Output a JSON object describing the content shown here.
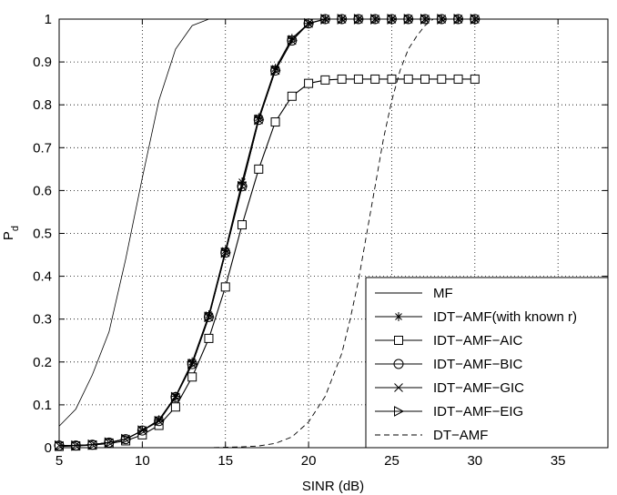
{
  "chart_data": {
    "type": "line",
    "title": "",
    "xlabel": "SINR (dB)",
    "ylabel_main": "P",
    "ylabel_sub": "d",
    "xlim": [
      5,
      38
    ],
    "ylim": [
      0,
      1
    ],
    "xticks": [
      5,
      10,
      15,
      20,
      25,
      30,
      35
    ],
    "yticks": [
      0,
      0.1,
      0.2,
      0.3,
      0.4,
      0.5,
      0.6,
      0.7,
      0.8,
      0.9,
      1
    ],
    "ytick_labels": [
      "0",
      "0.1",
      "0.2",
      "0.3",
      "0.4",
      "0.5",
      "0.6",
      "0.7",
      "0.8",
      "0.9",
      "1"
    ],
    "grid": true,
    "legend_position": "bottom-right",
    "x": [
      5,
      6,
      7,
      8,
      9,
      10,
      11,
      12,
      13,
      14,
      15,
      16,
      17,
      18,
      19,
      20,
      21,
      22,
      23,
      24,
      25,
      26,
      27,
      28,
      29,
      30
    ],
    "series": [
      {
        "name": "MF",
        "style": "solid",
        "marker": "none",
        "x": [
          5,
          6,
          7,
          8,
          9,
          10,
          11,
          12,
          13,
          14,
          15,
          16,
          17,
          18,
          19,
          20,
          21,
          22,
          23,
          24,
          25,
          26,
          27,
          28,
          29,
          30
        ],
        "values": [
          0.05,
          0.09,
          0.17,
          0.27,
          0.44,
          0.63,
          0.81,
          0.93,
          0.985,
          1,
          1,
          1,
          1,
          1,
          1,
          1,
          1,
          1,
          1,
          1,
          1,
          1,
          1,
          1,
          1,
          1
        ]
      },
      {
        "name": "IDT−AMF(with known r)",
        "style": "solid",
        "marker": "star",
        "x": [
          5,
          6,
          7,
          8,
          9,
          10,
          11,
          12,
          13,
          14,
          15,
          16,
          17,
          18,
          19,
          20,
          21,
          22,
          23,
          24,
          25,
          26,
          27,
          28,
          29,
          30
        ],
        "values": [
          0.005,
          0.005,
          0.007,
          0.012,
          0.02,
          0.04,
          0.065,
          0.12,
          0.2,
          0.31,
          0.46,
          0.62,
          0.77,
          0.885,
          0.955,
          0.99,
          1,
          1,
          1,
          1,
          1,
          1,
          1,
          1,
          1,
          1
        ]
      },
      {
        "name": "IDT−AMF−AIC",
        "style": "solid",
        "marker": "square",
        "x": [
          5,
          6,
          7,
          8,
          9,
          10,
          11,
          12,
          13,
          14,
          15,
          16,
          17,
          18,
          19,
          20,
          21,
          22,
          23,
          24,
          25,
          26,
          27,
          28,
          29,
          30
        ],
        "values": [
          0.003,
          0.004,
          0.006,
          0.01,
          0.016,
          0.03,
          0.052,
          0.095,
          0.165,
          0.255,
          0.375,
          0.52,
          0.65,
          0.76,
          0.82,
          0.85,
          0.858,
          0.86,
          0.86,
          0.86,
          0.86,
          0.86,
          0.86,
          0.86,
          0.86,
          0.86
        ]
      },
      {
        "name": "IDT−AMF−BIC",
        "style": "solid",
        "marker": "circle",
        "x": [
          5,
          6,
          7,
          8,
          9,
          10,
          11,
          12,
          13,
          14,
          15,
          16,
          17,
          18,
          19,
          20,
          21,
          22,
          23,
          24,
          25,
          26,
          27,
          28,
          29,
          30
        ],
        "values": [
          0.005,
          0.005,
          0.007,
          0.012,
          0.02,
          0.04,
          0.062,
          0.118,
          0.195,
          0.305,
          0.455,
          0.61,
          0.765,
          0.88,
          0.95,
          0.99,
          1,
          1,
          1,
          1,
          1,
          1,
          1,
          1,
          1,
          1
        ]
      },
      {
        "name": "IDT−AMF−GIC",
        "style": "solid",
        "marker": "x",
        "x": [
          5,
          6,
          7,
          8,
          9,
          10,
          11,
          12,
          13,
          14,
          15,
          16,
          17,
          18,
          19,
          20,
          21,
          22,
          23,
          24,
          25,
          26,
          27,
          28,
          29,
          30
        ],
        "values": [
          0.005,
          0.005,
          0.007,
          0.012,
          0.02,
          0.04,
          0.062,
          0.118,
          0.195,
          0.305,
          0.455,
          0.61,
          0.765,
          0.88,
          0.95,
          0.99,
          1,
          1,
          1,
          1,
          1,
          1,
          1,
          1,
          1,
          1
        ]
      },
      {
        "name": "IDT−AMF−EIG",
        "style": "solid",
        "marker": "triangle-right",
        "x": [
          5,
          6,
          7,
          8,
          9,
          10,
          11,
          12,
          13,
          14,
          15,
          16,
          17,
          18,
          19,
          20,
          21,
          22,
          23,
          24,
          25,
          26,
          27,
          28,
          29,
          30
        ],
        "values": [
          0.005,
          0.005,
          0.007,
          0.012,
          0.02,
          0.04,
          0.062,
          0.118,
          0.195,
          0.305,
          0.455,
          0.61,
          0.765,
          0.88,
          0.95,
          0.99,
          1,
          1,
          1,
          1,
          1,
          1,
          1,
          1,
          1,
          1
        ]
      },
      {
        "name": "DT−AMF",
        "style": "dashed",
        "marker": "none",
        "x": [
          5,
          8,
          10,
          12,
          14,
          15,
          16,
          17,
          18,
          19,
          20,
          21,
          22,
          22.5,
          23,
          23.5,
          24,
          24.5,
          25,
          25.5,
          26,
          26.5,
          27,
          27.5,
          28,
          28.5,
          29,
          30
        ],
        "values": [
          0,
          0,
          0,
          0,
          0,
          0.001,
          0.002,
          0.004,
          0.01,
          0.025,
          0.06,
          0.12,
          0.22,
          0.3,
          0.39,
          0.5,
          0.61,
          0.72,
          0.81,
          0.88,
          0.93,
          0.96,
          0.985,
          1,
          1,
          1,
          1,
          1
        ]
      }
    ]
  }
}
